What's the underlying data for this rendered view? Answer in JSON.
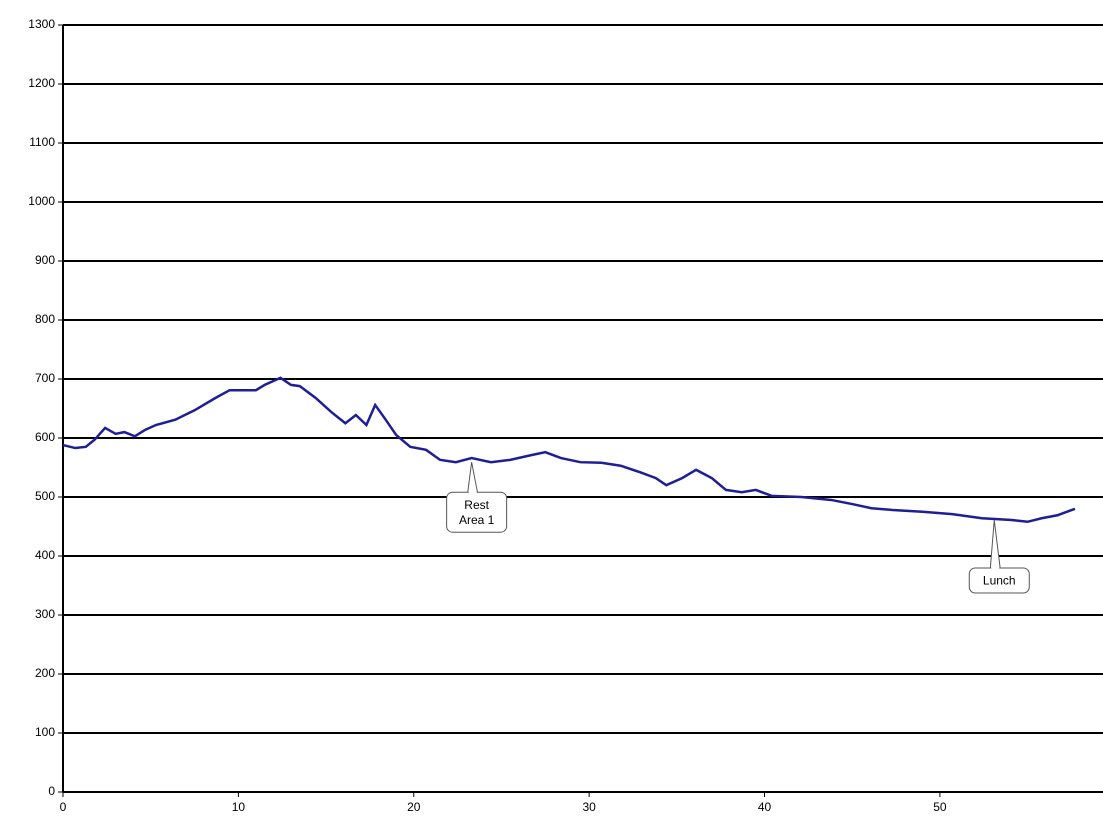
{
  "chart_data": {
    "type": "line",
    "x": [
      0,
      0.7,
      1.3,
      1.8,
      2.4,
      3.0,
      3.5,
      4.1,
      4.7,
      5.3,
      6.4,
      7.5,
      8.7,
      9.5,
      11.0,
      11.5,
      12.4,
      13.0,
      13.5,
      14.4,
      15.3,
      16.1,
      16.7,
      17.3,
      17.8,
      18.4,
      19.0,
      19.8,
      20.7,
      21.5,
      22.4,
      23.3,
      24.4,
      25.5,
      26.7,
      27.5,
      28.4,
      29.5,
      30.7,
      31.8,
      32.9,
      33.8,
      34.4,
      35.3,
      36.1,
      37.0,
      37.8,
      38.7,
      39.5,
      40.4,
      42.1,
      43.8,
      45.0,
      46.1,
      47.3,
      49.0,
      50.7,
      52.4,
      54.1,
      55.0,
      55.8,
      56.7,
      57.7
    ],
    "series": [
      {
        "color": "#1e1e96",
        "values": [
          588,
          583,
          585,
          597,
          617,
          607,
          610,
          603,
          614,
          622,
          631,
          647,
          668,
          681,
          681,
          690,
          702,
          690,
          688,
          668,
          644,
          625,
          639,
          622,
          656,
          631,
          605,
          585,
          580,
          563,
          559,
          566,
          559,
          563,
          571,
          576,
          566,
          559,
          558,
          553,
          542,
          532,
          520,
          532,
          546,
          532,
          512,
          508,
          512,
          502,
          500,
          495,
          488,
          481,
          478,
          475,
          471,
          464,
          461,
          458,
          464,
          469,
          480
        ]
      }
    ],
    "xlim": [
      0,
      59.3
    ],
    "xticks": [
      0,
      10,
      20,
      30,
      40,
      50
    ],
    "ylim": [
      0,
      1300
    ],
    "yticks": [
      0,
      100,
      200,
      300,
      400,
      500,
      600,
      700,
      800,
      900,
      1000,
      1100,
      1200,
      1300
    ],
    "grid": true,
    "annotations": [
      {
        "lines": [
          "Rest",
          "Area 1"
        ],
        "x": 23.3,
        "y": 559
      },
      {
        "lines": [
          "Lunch"
        ],
        "x": 53.1,
        "y": 461
      }
    ]
  }
}
